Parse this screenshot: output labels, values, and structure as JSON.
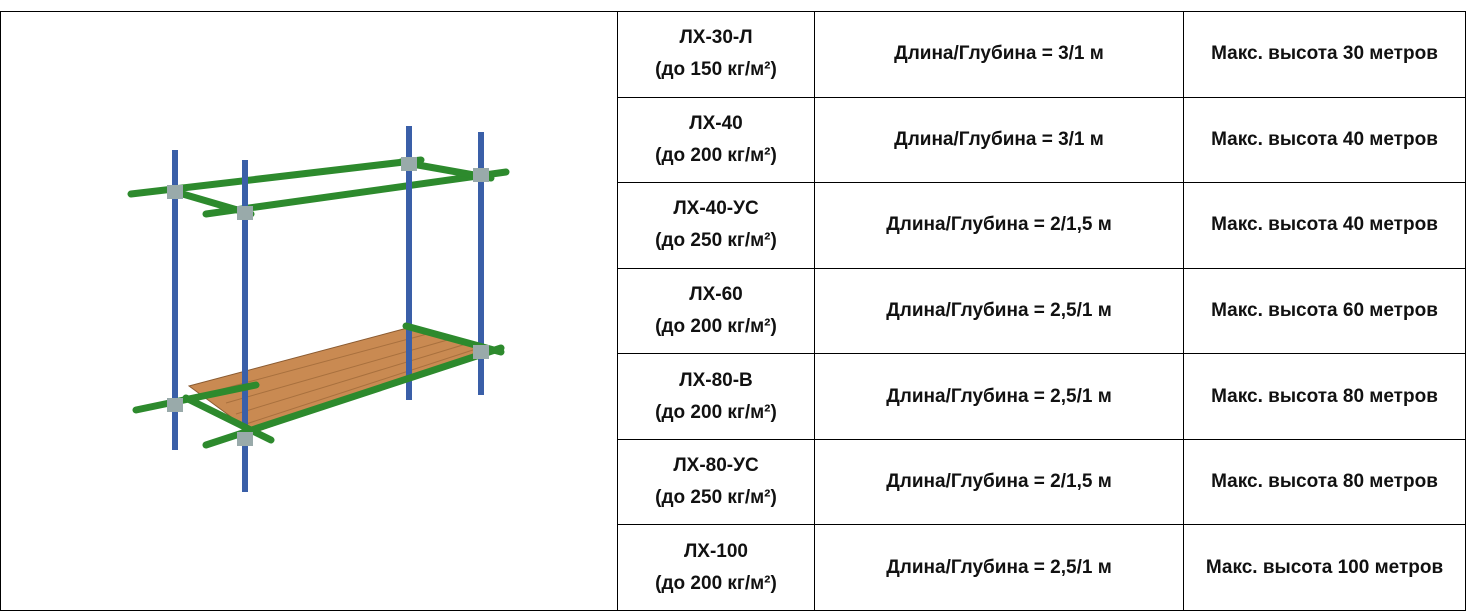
{
  "table": {
    "rows": [
      {
        "model": "ЛХ-30-Л",
        "load": "(до 150 кг/м²)",
        "size": "Длина/Глубина = 3/1 м",
        "height": "Макс. высота 30 метров"
      },
      {
        "model": "ЛХ-40",
        "load": "(до 200 кг/м²)",
        "size": "Длина/Глубина = 3/1 м",
        "height": "Макс. высота 40 метров"
      },
      {
        "model": "ЛХ-40-УС",
        "load": "(до 250 кг/м²)",
        "size": "Длина/Глубина = 2/1,5 м",
        "height": "Макс. высота 40 метров"
      },
      {
        "model": "ЛХ-60",
        "load": "(до 200 кг/м²)",
        "size": "Длина/Глубина = 2,5/1 м",
        "height": "Макс. высота 60 метров"
      },
      {
        "model": "ЛХ-80-В",
        "load": "(до 200 кг/м²)",
        "size": "Длина/Глубина = 2,5/1 м",
        "height": "Макс. высота 80 метров"
      },
      {
        "model": "ЛХ-80-УС",
        "load": "(до 250 кг/м²)",
        "size": "Длина/Глубина = 2/1,5 м",
        "height": "Макс. высота 80 метров"
      },
      {
        "model": "ЛХ-100",
        "load": "(до 200 кг/м²)",
        "size": "Длина/Глубина = 2,5/1 м",
        "height": "Макс. высота 100 метров"
      }
    ]
  }
}
